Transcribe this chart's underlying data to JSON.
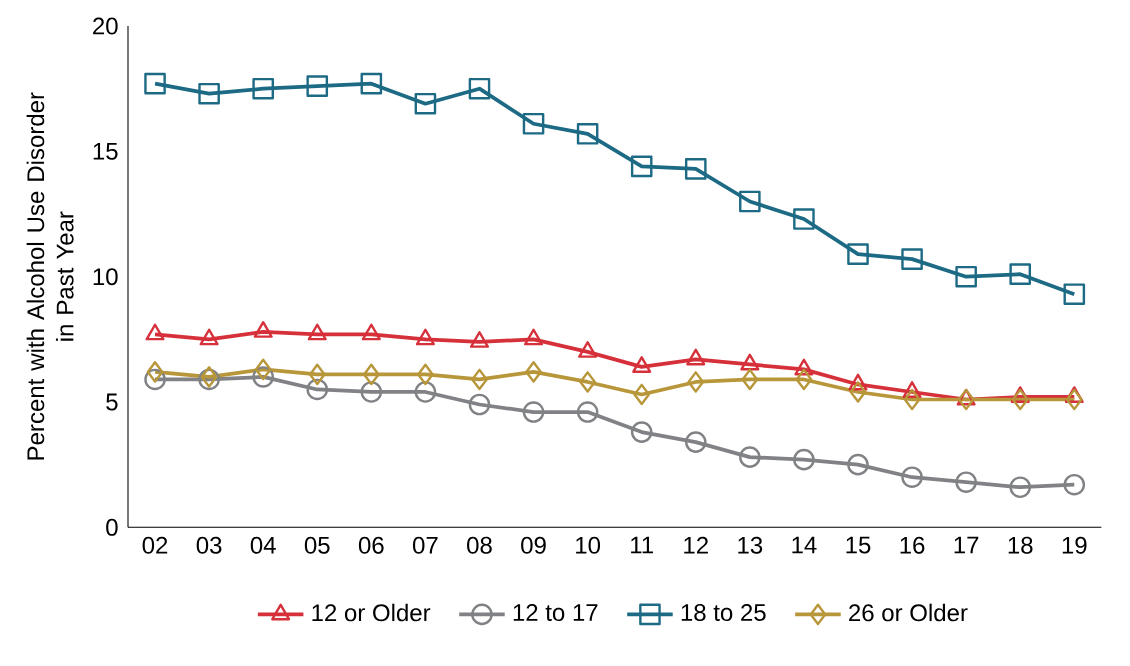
{
  "chart_data": {
    "type": "line",
    "ylabel": "Percent with Alcohol Use Disorder\nin Past Year",
    "categories": [
      "02",
      "03",
      "04",
      "05",
      "06",
      "07",
      "08",
      "09",
      "10",
      "11",
      "12",
      "13",
      "14",
      "15",
      "16",
      "17",
      "18",
      "19"
    ],
    "ylim": [
      0,
      20
    ],
    "yticks": [
      0,
      5,
      10,
      15,
      20
    ],
    "grid": false,
    "legend": "bottom",
    "series": [
      {
        "name": "12 or Older",
        "color": "#d6313a",
        "marker": "triangle",
        "values": [
          7.7,
          7.5,
          7.8,
          7.7,
          7.7,
          7.5,
          7.4,
          7.5,
          7.0,
          6.4,
          6.7,
          6.5,
          6.3,
          5.7,
          5.4,
          5.1,
          5.2,
          5.2
        ]
      },
      {
        "name": "12 to 17",
        "color": "#808285",
        "marker": "circle",
        "values": [
          5.9,
          5.9,
          6.0,
          5.5,
          5.4,
          5.4,
          4.9,
          4.6,
          4.6,
          3.8,
          3.4,
          2.8,
          2.7,
          2.5,
          2.0,
          1.8,
          1.6,
          1.7
        ]
      },
      {
        "name": "18 to 25",
        "color": "#1d6a85",
        "marker": "square",
        "values": [
          17.7,
          17.3,
          17.5,
          17.6,
          17.7,
          16.9,
          17.5,
          16.1,
          15.7,
          14.4,
          14.3,
          13.0,
          12.3,
          10.9,
          10.7,
          10.0,
          10.1,
          9.3
        ]
      },
      {
        "name": "26 or Older",
        "color": "#b8963a",
        "marker": "diamond",
        "values": [
          6.2,
          6.0,
          6.3,
          6.1,
          6.1,
          6.1,
          5.9,
          6.2,
          5.8,
          5.3,
          5.8,
          5.9,
          5.9,
          5.4,
          5.1,
          5.1,
          5.1,
          5.1
        ]
      }
    ]
  }
}
